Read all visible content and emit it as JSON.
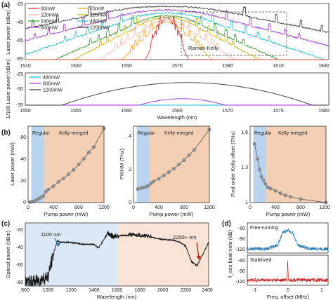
{
  "panels": {
    "a": "(a)",
    "b": "(b)",
    "c": "(c)",
    "d": "(d)"
  },
  "colors": {
    "regular_bg": "#b8d4ee",
    "kelly_bg": "#f5cfb4",
    "span_blue": "#dbe8f6",
    "span_peach": "#f9e3d6",
    "free_running": "#1f77b4",
    "stabilized": "#cc1111"
  },
  "a_top": {
    "ylabel": "Laser power (dBm)",
    "annotation": "Raman-Kelly",
    "legend": [
      {
        "label": "30mW",
        "color": "#d62728"
      },
      {
        "label": "70mW",
        "color": "#ff9f1c"
      },
      {
        "label": "120mW",
        "color": "#f2b6a0"
      },
      {
        "label": "210mW",
        "color": "#c9b000"
      },
      {
        "label": "240mW",
        "color": "#2ca02c"
      },
      {
        "label": "480mW",
        "color": "#17becf"
      },
      {
        "label": "800mW",
        "color": "#9b30d9"
      },
      {
        "label": "1200mW",
        "color": "#333333"
      }
    ],
    "xticks": [
      "1510",
      "1530",
      "1550",
      "1570",
      "1590",
      "1610",
      "1630"
    ],
    "yticks": [
      "-25",
      "-45",
      "-65",
      "-85"
    ]
  },
  "a_bottom": {
    "ylabel": "1/100 Laser power (dBm)",
    "xlabel": "Wavelength (nm)",
    "legend": [
      {
        "label": "480mW",
        "color": "#17becf"
      },
      {
        "label": "800mW",
        "color": "#9b30d9"
      },
      {
        "label": "1200mW",
        "color": "#333333"
      }
    ],
    "xticks": [
      "1550",
      "1555",
      "1560",
      "1565",
      "1570",
      "1575",
      "1580"
    ],
    "yticks": [
      "-25",
      "-30",
      "-35"
    ]
  },
  "b": {
    "regular": "Regular",
    "kelly": "Kelly-merged",
    "xlabel": "Pump power (mW)",
    "b1": {
      "ylabel": "Laser power (mW)",
      "xticks": [
        "0",
        "400",
        "800",
        "1200"
      ],
      "yticks": [
        "0",
        "20",
        "40",
        "60"
      ]
    },
    "b2": {
      "ylabel": "FWHM (THz)",
      "xticks": [
        "0",
        "400",
        "800",
        "1200"
      ],
      "yticks": [
        "0",
        "2",
        "4"
      ]
    },
    "b3": {
      "ylabel": "First order Kelly offset (THz)",
      "xticks": [
        "0",
        "400",
        "800",
        "1200"
      ],
      "yticks": [
        "1",
        "1.3",
        "1.6"
      ]
    }
  },
  "c": {
    "ylabel": "Optical power (dBm)",
    "xlabel": "Wavelength (nm)",
    "ann_left": "1100 nm",
    "ann_right": "2200+ nm",
    "xticks": [
      "800",
      "1000",
      "1200",
      "1400",
      "1600",
      "1800",
      "2000",
      "2200",
      "2400"
    ],
    "yticks": [
      "-20",
      "-40",
      "-60",
      "-80"
    ]
  },
  "d": {
    "ylabel": "f_ceo beat note (dB)",
    "xlabel": "Freq. offset (MHz)",
    "free": "Free-running",
    "stab": "Stabilized",
    "xticks": [
      "-1",
      "0",
      "1"
    ],
    "yticks_top": [
      "-60",
      "-90",
      "-120"
    ],
    "yticks_bottom": [
      "-60",
      "-90",
      "-120"
    ]
  },
  "chart_data": [
    {
      "type": "line",
      "panel": "a-top",
      "xlim": [
        1510,
        1630
      ],
      "ylim": [
        -85,
        -25
      ],
      "xlabel": "Wavelength (nm)",
      "ylabel": "Laser power (dBm)",
      "series": [
        {
          "name": "30mW",
          "center": 1566,
          "peak": -40,
          "half_width_nm": 3
        },
        {
          "name": "70mW",
          "center": 1566,
          "peak": -45,
          "half_width_nm": 7
        },
        {
          "name": "120mW",
          "center": 1566,
          "peak": -43,
          "half_width_nm": 10
        },
        {
          "name": "210mW",
          "center": 1566,
          "peak": -40,
          "half_width_nm": 13
        },
        {
          "name": "240mW",
          "center": 1566,
          "peak": -38,
          "half_width_nm": 15
        },
        {
          "name": "480mW",
          "center": 1566,
          "peak": -35,
          "half_width_nm": 20
        },
        {
          "name": "800mW",
          "center": 1566,
          "peak": -32,
          "half_width_nm": 26
        },
        {
          "name": "1200mW",
          "center": 1566,
          "peak": -28,
          "half_width_nm": 34
        }
      ]
    },
    {
      "type": "line",
      "panel": "a-bottom",
      "xlim": [
        1550,
        1580
      ],
      "ylim": [
        -35,
        -25
      ],
      "series": [
        {
          "name": "480mW",
          "center": 1565,
          "peak": -35,
          "half_width_nm": 6
        },
        {
          "name": "800mW",
          "center": 1565.5,
          "peak": -33,
          "half_width_nm": 9
        },
        {
          "name": "1200mW",
          "center": 1566,
          "peak": -28,
          "half_width_nm": 14
        }
      ]
    },
    {
      "type": "scatter",
      "panel": "b-laser-power",
      "xlim": [
        0,
        1200
      ],
      "ylim": [
        0,
        70
      ],
      "regular_region": [
        50,
        250
      ],
      "kelly_region": [
        250,
        1200
      ],
      "x": [
        30,
        70,
        120,
        150,
        180,
        210,
        240,
        280,
        320,
        400,
        480,
        560,
        640,
        720,
        800,
        880,
        960,
        1040,
        1200
      ],
      "y": [
        0.5,
        1,
        2,
        3,
        4,
        5,
        6,
        10,
        12,
        15,
        19,
        22,
        26,
        30,
        35,
        40,
        46,
        51,
        68
      ]
    },
    {
      "type": "scatter",
      "panel": "b-fwhm",
      "xlim": [
        0,
        1200
      ],
      "ylim": [
        0,
        4.5
      ],
      "regular_region": [
        50,
        250
      ],
      "kelly_region": [
        250,
        1200
      ],
      "x": [
        70,
        120,
        150,
        180,
        210,
        240,
        280,
        320,
        400,
        480,
        560,
        640,
        720,
        800,
        880,
        960,
        1200
      ],
      "y": [
        0.8,
        0.85,
        0.88,
        0.9,
        0.95,
        1.0,
        1.15,
        1.25,
        1.4,
        1.6,
        1.8,
        2.0,
        2.25,
        2.5,
        2.8,
        3.1,
        4.3
      ]
    },
    {
      "type": "scatter",
      "panel": "b-kelly-offset",
      "xlim": [
        0,
        1200
      ],
      "ylim": [
        1,
        1.65
      ],
      "regular_region": [
        50,
        250
      ],
      "kelly_region": [
        250,
        1200
      ],
      "x": [
        70,
        120,
        150,
        180,
        210,
        240,
        280,
        320,
        400,
        480,
        560,
        640,
        800,
        1200
      ],
      "y": [
        1.5,
        1.37,
        1.28,
        1.22,
        1.19,
        1.16,
        1.13,
        1.12,
        1.1,
        1.08,
        1.06,
        1.05,
        1.03,
        1.0
      ]
    },
    {
      "type": "line",
      "panel": "c",
      "xlim": [
        800,
        2400
      ],
      "ylim": [
        -85,
        -20
      ],
      "x": [
        800,
        900,
        1000,
        1050,
        1080,
        1100,
        1200,
        1300,
        1400,
        1440,
        1480,
        1520,
        1560,
        1600,
        1700,
        1800,
        1900,
        2000,
        2100,
        2150,
        2200,
        2250,
        2300,
        2350,
        2400
      ],
      "y": [
        -82,
        -80,
        -75,
        -50,
        -38,
        -40,
        -40,
        -42,
        -42,
        -46,
        -38,
        -30,
        -34,
        -33,
        -33,
        -34,
        -35,
        -37,
        -38,
        -40,
        -44,
        -60,
        -64,
        -52,
        -40
      ]
    },
    {
      "type": "line",
      "panel": "d-free-running",
      "xlim": [
        -1.2,
        1.2
      ],
      "ylim": [
        -125,
        -50
      ],
      "x": [
        -1.2,
        -0.6,
        -0.3,
        -0.15,
        0,
        0.15,
        0.3,
        0.6,
        1.2
      ],
      "y": [
        -115,
        -114,
        -105,
        -75,
        -68,
        -75,
        -105,
        -114,
        -115
      ]
    },
    {
      "type": "line",
      "panel": "d-stabilized",
      "xlim": [
        -1.2,
        1.2
      ],
      "ylim": [
        -125,
        -50
      ],
      "x": [
        -1.2,
        -0.02,
        0,
        0.02,
        1.2
      ],
      "y": [
        -112,
        -112,
        -62,
        -112,
        -112
      ]
    }
  ]
}
